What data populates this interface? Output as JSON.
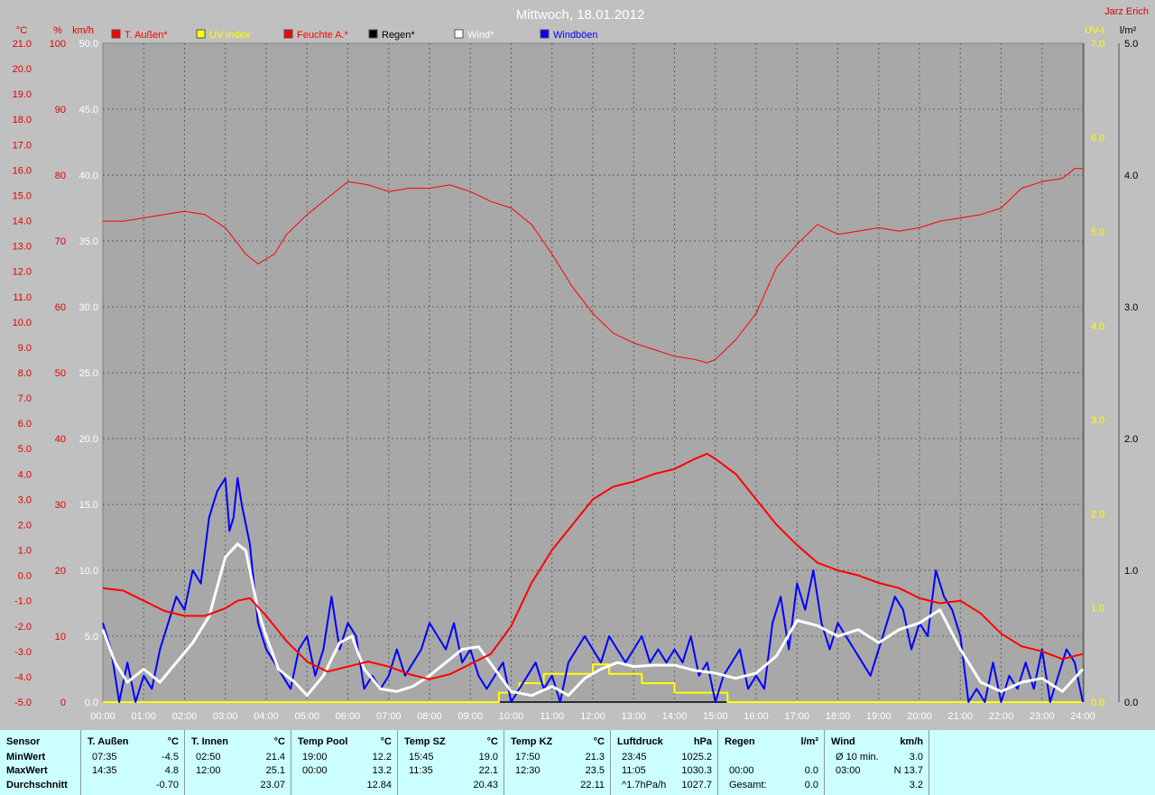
{
  "header": {
    "title": "Mittwoch, 18.01.2012",
    "author": "Jarz Erich"
  },
  "axes": {
    "units_left": [
      "°C",
      "%",
      "km/h"
    ],
    "units_right": [
      "UV-I",
      "l/m²"
    ],
    "temp_ticks": [
      "21.0",
      "20.0",
      "19.0",
      "18.0",
      "17.0",
      "16.0",
      "15.0",
      "14.0",
      "13.0",
      "12.0",
      "11.0",
      "10.0",
      "9.0",
      "8.0",
      "7.0",
      "6.0",
      "5.0",
      "4.0",
      "3.0",
      "2.0",
      "1.0",
      "0.0",
      "-1.0",
      "-2.0",
      "-3.0",
      "-4.0",
      "-5.0"
    ],
    "hum_ticks": [
      "100",
      "90",
      "80",
      "70",
      "60",
      "50",
      "40",
      "30",
      "20",
      "10",
      "0"
    ],
    "wind_ticks": [
      "50.0",
      "45.0",
      "40.0",
      "35.0",
      "30.0",
      "25.0",
      "20.0",
      "15.0",
      "10.0",
      "5.0",
      "0.0"
    ],
    "uv_ticks": [
      "7.0",
      "6.0",
      "5.0",
      "4.0",
      "3.0",
      "2.0",
      "1.0",
      "0.0"
    ],
    "rain_ticks": [
      "5.0",
      "4.0",
      "3.0",
      "2.0",
      "1.0",
      "0.0"
    ],
    "time_ticks": [
      "00:00",
      "01:00",
      "02:00",
      "03:00",
      "04:00",
      "05:00",
      "06:00",
      "07:00",
      "08:00",
      "09:00",
      "10:00",
      "11:00",
      "12:00",
      "13:00",
      "14:00",
      "15:00",
      "16:00",
      "17:00",
      "18:00",
      "19:00",
      "20:00",
      "21:00",
      "22:00",
      "23:00",
      "24:00"
    ]
  },
  "legend": [
    {
      "label": "T. Außen*",
      "color": "#ff0000"
    },
    {
      "label": "UV Index",
      "color": "#ffff00"
    },
    {
      "label": "Feuchte A.*",
      "color": "#ff0000"
    },
    {
      "label": "Regen*",
      "color": "#000000"
    },
    {
      "label": "Wind*",
      "color": "#ffffff"
    },
    {
      "label": "Windböen",
      "color": "#0000ff"
    }
  ],
  "chart_data": {
    "type": "line",
    "title": "Mittwoch, 18.01.2012",
    "xlim": [
      0,
      24
    ],
    "ylim_temp": [
      -5,
      21
    ],
    "ylim_humidity": [
      0,
      100
    ],
    "ylim_wind": [
      0,
      50
    ],
    "ylim_uv": [
      0,
      7
    ],
    "ylim_rain": [
      0,
      5
    ],
    "grid": true,
    "legend_position": "top",
    "series": [
      {
        "name": "T. Außen*",
        "axis": "temp",
        "color": "#ff0000",
        "x": [
          0,
          0.5,
          1,
          1.5,
          2,
          2.5,
          3,
          3.3,
          3.6,
          4,
          4.5,
          5,
          5.5,
          6,
          6.5,
          7,
          7.5,
          8,
          8.5,
          9,
          9.5,
          10,
          10.5,
          11,
          11.5,
          12,
          12.5,
          13,
          13.5,
          14,
          14.5,
          14.8,
          15,
          15.5,
          16,
          16.5,
          17,
          17.5,
          18,
          18.5,
          19,
          19.5,
          20,
          20.5,
          21,
          21.5,
          22,
          22.5,
          23,
          23.5,
          24
        ],
        "y": [
          -0.5,
          -0.6,
          -1.0,
          -1.4,
          -1.6,
          -1.6,
          -1.3,
          -1.0,
          -0.9,
          -1.6,
          -2.6,
          -3.4,
          -3.8,
          -3.6,
          -3.4,
          -3.6,
          -3.9,
          -4.1,
          -3.9,
          -3.5,
          -3.1,
          -2.0,
          -0.3,
          1.0,
          2.0,
          3.0,
          3.5,
          3.7,
          4.0,
          4.2,
          4.6,
          4.8,
          4.6,
          4.0,
          3.0,
          2.0,
          1.2,
          0.5,
          0.2,
          0.0,
          -0.3,
          -0.5,
          -0.9,
          -1.1,
          -1.0,
          -1.5,
          -2.3,
          -2.8,
          -3.0,
          -3.3,
          -3.1
        ]
      },
      {
        "name": "Feuchte A.*",
        "axis": "humidity",
        "color": "#ff0000",
        "x": [
          0,
          0.5,
          1,
          1.5,
          2,
          2.5,
          3,
          3.5,
          3.8,
          4.2,
          4.5,
          5,
          5.5,
          6,
          6.5,
          7,
          7.5,
          8,
          8.5,
          9,
          9.5,
          10,
          10.5,
          11,
          11.5,
          12,
          12.5,
          13,
          13.5,
          14,
          14.5,
          14.8,
          15,
          15.5,
          16,
          16.5,
          17,
          17.5,
          18,
          18.5,
          19,
          19.5,
          20,
          20.5,
          21,
          21.5,
          22,
          22.5,
          23,
          23.5,
          23.8,
          24
        ],
        "y": [
          73,
          73,
          73.5,
          74,
          74.5,
          74,
          72,
          68,
          66.5,
          68,
          71,
          74,
          76.5,
          79,
          78.5,
          77.5,
          78,
          78,
          78.5,
          77.5,
          76,
          75,
          72.5,
          68,
          63,
          59,
          56,
          54.5,
          53.5,
          52.5,
          52,
          51.5,
          52,
          55,
          59,
          66,
          69.5,
          72.5,
          71,
          71.5,
          72,
          71.5,
          72,
          73,
          73.5,
          74,
          75,
          78,
          79,
          79.5,
          81,
          81
        ]
      },
      {
        "name": "Wind*",
        "axis": "wind",
        "color": "#ffffff",
        "x": [
          0,
          0.3,
          0.6,
          1,
          1.4,
          1.8,
          2.2,
          2.6,
          3,
          3.3,
          3.5,
          3.8,
          4,
          4.3,
          4.7,
          5,
          5.4,
          5.8,
          6.1,
          6.4,
          6.8,
          7.2,
          7.6,
          8,
          8.4,
          8.8,
          9.2,
          9.6,
          10,
          10.5,
          11,
          11.4,
          11.8,
          12.2,
          12.6,
          13,
          13.5,
          14,
          14.5,
          15,
          15.5,
          16,
          16.5,
          17,
          17.5,
          18,
          18.5,
          19,
          19.5,
          20,
          20.5,
          21,
          21.5,
          22,
          22.5,
          23,
          23.5,
          24
        ],
        "y": [
          5.5,
          3,
          1.5,
          2.5,
          1.5,
          3,
          4.5,
          6.5,
          11,
          12,
          11.5,
          7,
          5,
          2.5,
          1.5,
          0.5,
          2,
          4.5,
          5,
          2.5,
          1,
          0.8,
          1.2,
          2,
          3,
          4,
          4.2,
          2.5,
          0.8,
          0.5,
          1.2,
          0.5,
          1.8,
          2.5,
          3,
          2.7,
          2.8,
          2.8,
          2.4,
          2.2,
          1.8,
          2.2,
          3.5,
          6.2,
          5.8,
          5,
          5.5,
          4.5,
          5.5,
          6,
          7,
          4,
          1.5,
          0.8,
          1.5,
          1.8,
          0.8,
          2.5
        ]
      },
      {
        "name": "Windböen",
        "axis": "wind",
        "color": "#0000ff",
        "x": [
          0,
          0.2,
          0.4,
          0.6,
          0.8,
          1,
          1.2,
          1.4,
          1.6,
          1.8,
          2,
          2.2,
          2.4,
          2.6,
          2.8,
          3,
          3.1,
          3.2,
          3.3,
          3.4,
          3.6,
          3.8,
          4,
          4.2,
          4.4,
          4.6,
          4.8,
          5,
          5.2,
          5.4,
          5.6,
          5.8,
          6,
          6.2,
          6.4,
          6.6,
          6.8,
          7,
          7.2,
          7.4,
          7.6,
          7.8,
          8,
          8.2,
          8.4,
          8.6,
          8.8,
          9,
          9.2,
          9.4,
          9.6,
          9.8,
          10,
          10.2,
          10.4,
          10.6,
          10.8,
          11,
          11.2,
          11.4,
          11.6,
          11.8,
          12,
          12.2,
          12.4,
          12.6,
          12.8,
          13,
          13.2,
          13.4,
          13.6,
          13.8,
          14,
          14.2,
          14.4,
          14.6,
          14.8,
          15,
          15.2,
          15.4,
          15.6,
          15.8,
          16,
          16.2,
          16.4,
          16.6,
          16.8,
          17,
          17.2,
          17.4,
          17.6,
          17.8,
          18,
          18.2,
          18.4,
          18.6,
          18.8,
          19,
          19.2,
          19.4,
          19.6,
          19.8,
          20,
          20.2,
          20.4,
          20.6,
          20.8,
          21,
          21.2,
          21.4,
          21.6,
          21.8,
          22,
          22.2,
          22.4,
          22.6,
          22.8,
          23,
          23.2,
          23.4,
          23.6,
          23.8,
          24
        ],
        "y": [
          6,
          4,
          0,
          3,
          0,
          2,
          1,
          4,
          6,
          8,
          7,
          10,
          9,
          14,
          16,
          17,
          13,
          14,
          17,
          15,
          12,
          6,
          4,
          3,
          2,
          1,
          4,
          5,
          2,
          4,
          8,
          4,
          6,
          5,
          1,
          2,
          1,
          2,
          4,
          2,
          3,
          4,
          6,
          5,
          4,
          6,
          3,
          4,
          2,
          1,
          2,
          3,
          0,
          1,
          2,
          3,
          1,
          2,
          0,
          3,
          4,
          5,
          4,
          3,
          5,
          4,
          3,
          4,
          5,
          3,
          4,
          3,
          4,
          3,
          5,
          2,
          3,
          0,
          2,
          3,
          4,
          1,
          2,
          1,
          6,
          8,
          4,
          9,
          7,
          10,
          6,
          4,
          6,
          5,
          4,
          3,
          2,
          4,
          6,
          8,
          7,
          4,
          6,
          5,
          10,
          8,
          7,
          5,
          0,
          1,
          0,
          3,
          0,
          2,
          1,
          3,
          1,
          4,
          0,
          2,
          4,
          3,
          0
        ]
      },
      {
        "name": "UV Index",
        "axis": "uv",
        "color": "#ffff00",
        "x": [
          0,
          9.7,
          9.7,
          10.2,
          10.2,
          10.8,
          10.8,
          12.0,
          12.0,
          12.4,
          12.4,
          13.2,
          13.2,
          14.0,
          14.0,
          15.3,
          15.3,
          24
        ],
        "y": [
          0,
          0,
          0.1,
          0.1,
          0.2,
          0.2,
          0.3,
          0.3,
          0.4,
          0.4,
          0.3,
          0.3,
          0.2,
          0.2,
          0.1,
          0.1,
          0,
          0
        ]
      },
      {
        "name": "Regen*",
        "axis": "rain",
        "color": "#000000",
        "x": [
          0,
          24
        ],
        "y": [
          0,
          0
        ]
      }
    ]
  },
  "stats": [
    {
      "header": [
        "Sensor"
      ],
      "rows": [
        [
          "MinWert"
        ],
        [
          "MaxWert"
        ],
        [
          "Durchschnitt"
        ]
      ]
    },
    {
      "header": [
        "T. Außen",
        "°C"
      ],
      "rows": [
        [
          "07:35",
          "-4.5"
        ],
        [
          "14:35",
          "4.8"
        ],
        [
          "",
          "-0.70"
        ]
      ]
    },
    {
      "header": [
        "T. Innen",
        "°C"
      ],
      "rows": [
        [
          "02:50",
          "21.4"
        ],
        [
          "12:00",
          "25.1"
        ],
        [
          "",
          "23.07"
        ]
      ]
    },
    {
      "header": [
        "Temp Pool",
        "°C"
      ],
      "rows": [
        [
          "19:00",
          "12.2"
        ],
        [
          "00:00",
          "13.2"
        ],
        [
          "",
          "12.84"
        ]
      ]
    },
    {
      "header": [
        "Temp SZ",
        "°C"
      ],
      "rows": [
        [
          "15:45",
          "19.0"
        ],
        [
          "11:35",
          "22.1"
        ],
        [
          "",
          "20.43"
        ]
      ]
    },
    {
      "header": [
        "Temp KZ",
        "°C"
      ],
      "rows": [
        [
          "17:50",
          "21.3"
        ],
        [
          "12:30",
          "23.5"
        ],
        [
          "",
          "22.11"
        ]
      ]
    },
    {
      "header": [
        "Luftdruck",
        "hPa"
      ],
      "rows": [
        [
          "23:45",
          "1025.2"
        ],
        [
          "11:05",
          "1030.3"
        ],
        [
          "^1.7hPa/h",
          "1027.7"
        ]
      ]
    },
    {
      "header": [
        "Regen",
        "l/m²"
      ],
      "rows": [
        [
          "",
          ""
        ],
        [
          "00:00",
          "0.0"
        ],
        [
          "Gesamt:",
          "0.0"
        ]
      ]
    },
    {
      "header": [
        "Wind",
        "km/h"
      ],
      "rows": [
        [
          "Ø 10 min.",
          "3.0"
        ],
        [
          "03:00",
          "N 13.7"
        ],
        [
          "",
          "3.2"
        ]
      ]
    }
  ]
}
